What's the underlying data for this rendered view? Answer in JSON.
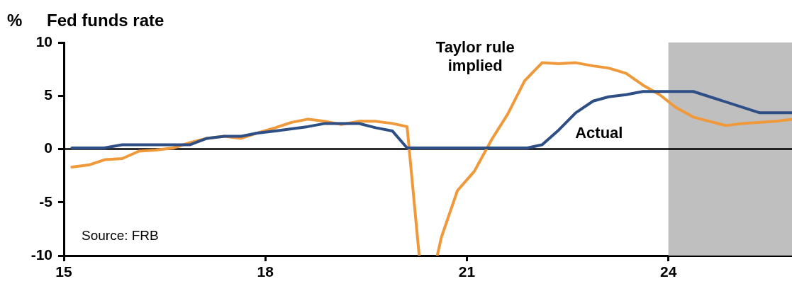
{
  "chart_data": {
    "type": "line",
    "title": "Fed funds rate",
    "ylabel": "%",
    "xlim": [
      15,
      25.84
    ],
    "xticks": [
      15,
      18,
      21,
      24
    ],
    "ylim": [
      -10,
      10
    ],
    "yticks": [
      -10,
      -5,
      0,
      5,
      10
    ],
    "grid": false,
    "legend": false,
    "marker": "none",
    "line_style": "solid",
    "series": [
      {
        "name": "Actual",
        "color": "#2e4f86",
        "x": [
          15.12,
          15.6,
          15.87,
          16.88,
          17.13,
          17.39,
          17.64,
          17.88,
          18.15,
          18.63,
          18.89,
          19.13,
          19.39,
          19.64,
          19.89,
          20.11,
          21.9,
          22.12,
          22.37,
          22.62,
          22.88,
          23.11,
          23.37,
          23.62,
          23.87,
          24.37,
          25.36,
          25.84
        ],
        "values": [
          0.1,
          0.1,
          0.4,
          0.4,
          1.0,
          1.2,
          1.2,
          1.5,
          1.7,
          2.1,
          2.4,
          2.4,
          2.4,
          2.0,
          1.7,
          0.1,
          0.1,
          0.4,
          1.8,
          3.4,
          4.5,
          4.9,
          5.1,
          5.4,
          5.4,
          5.4,
          3.4,
          3.4
        ]
      },
      {
        "name": "Taylor rule implied",
        "color": "#f0993a",
        "x": [
          15.12,
          15.37,
          15.61,
          15.87,
          16.12,
          16.37,
          16.63,
          16.88,
          17.13,
          17.39,
          17.64,
          17.88,
          18.15,
          18.39,
          18.63,
          18.89,
          19.13,
          19.39,
          19.64,
          19.89,
          20.11,
          20.29,
          20.42,
          20.56,
          20.62,
          20.86,
          21.11,
          21.37,
          21.61,
          21.86,
          22.12,
          22.37,
          22.62,
          22.88,
          23.11,
          23.37,
          23.62,
          23.87,
          24.11,
          24.37,
          24.61,
          24.86,
          25.1,
          25.36,
          25.6,
          25.84
        ],
        "values": [
          -1.7,
          -1.5,
          -1.0,
          -0.9,
          -0.2,
          -0.1,
          0.1,
          0.6,
          1.0,
          1.2,
          1.0,
          1.5,
          2.0,
          2.5,
          2.8,
          2.6,
          2.3,
          2.6,
          2.6,
          2.4,
          2.1,
          -10,
          null,
          -10,
          -8.3,
          -3.9,
          -2.1,
          0.9,
          3.3,
          6.4,
          8.1,
          8.0,
          8.1,
          7.8,
          7.6,
          7.1,
          6.0,
          5.1,
          3.9,
          3.0,
          2.6,
          2.2,
          2.4,
          2.5,
          2.6,
          2.8
        ]
      }
    ],
    "ref_lines": [
      {
        "axis": "y",
        "value": 0,
        "color": "#000000"
      }
    ],
    "bands": [
      {
        "axis": "x",
        "from": 24,
        "to": 25.84,
        "color": "#bfbfbf"
      }
    ],
    "annotations": [
      "Source: FRB"
    ]
  }
}
